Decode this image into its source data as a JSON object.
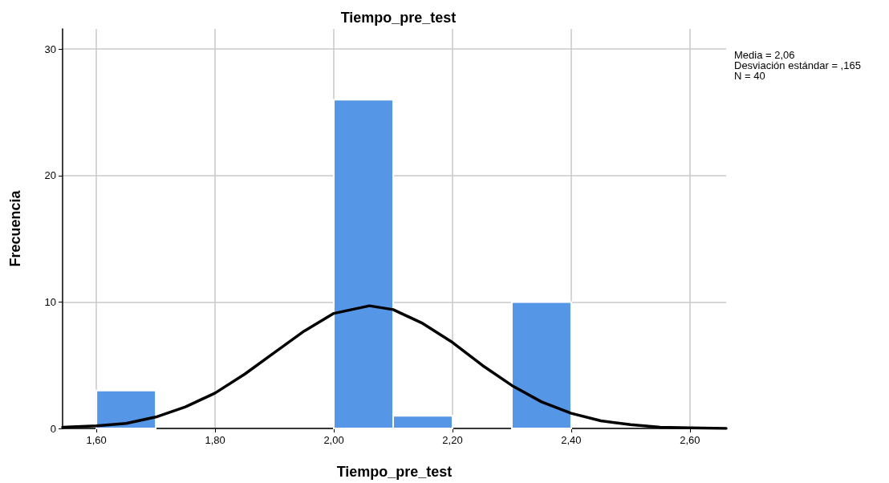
{
  "chart_data": {
    "type": "histogram",
    "title": "Tiempo_pre_test",
    "xlabel": "Tiempo_pre_test",
    "ylabel": "Frecuencia",
    "annotations": [
      "Media = 2,06",
      "Desviación estándar = ,165",
      "N = 40"
    ],
    "series": [
      {
        "type": "histogram",
        "color": "#5596e6",
        "bins": [
          1.6,
          1.7,
          1.8,
          1.9,
          2.0,
          2.1,
          2.2,
          2.3,
          2.4
        ],
        "values": [
          3,
          0,
          0,
          0,
          26,
          1,
          0,
          10
        ]
      },
      {
        "type": "line",
        "color": "#000000",
        "x": [
          1.543,
          1.6,
          1.65,
          1.7,
          1.75,
          1.8,
          1.85,
          1.9,
          1.95,
          2.0,
          2.06,
          2.1,
          2.15,
          2.2,
          2.25,
          2.3,
          2.35,
          2.4,
          2.45,
          2.5,
          2.55,
          2.6,
          2.661
        ],
        "values": [
          0.1,
          0.2,
          0.4,
          0.9,
          1.7,
          2.8,
          4.3,
          6.0,
          7.7,
          9.1,
          9.7,
          9.4,
          8.3,
          6.8,
          5.0,
          3.4,
          2.1,
          1.2,
          0.6,
          0.3,
          0.1,
          0.05,
          0
        ]
      }
    ],
    "xlim": [
      1.543,
      2.661
    ],
    "xticks": [
      {
        "value": 1.6,
        "label": "1,60"
      },
      {
        "value": 1.8,
        "label": "1,80"
      },
      {
        "value": 2.0,
        "label": "2,00"
      },
      {
        "value": 2.2,
        "label": "2,20"
      },
      {
        "value": 2.4,
        "label": "2,40"
      },
      {
        "value": 2.6,
        "label": "2,60"
      }
    ],
    "ylim": [
      0,
      31.6
    ],
    "yticks": [
      0,
      10,
      20,
      30
    ],
    "grid": true,
    "line_style": "solid"
  }
}
